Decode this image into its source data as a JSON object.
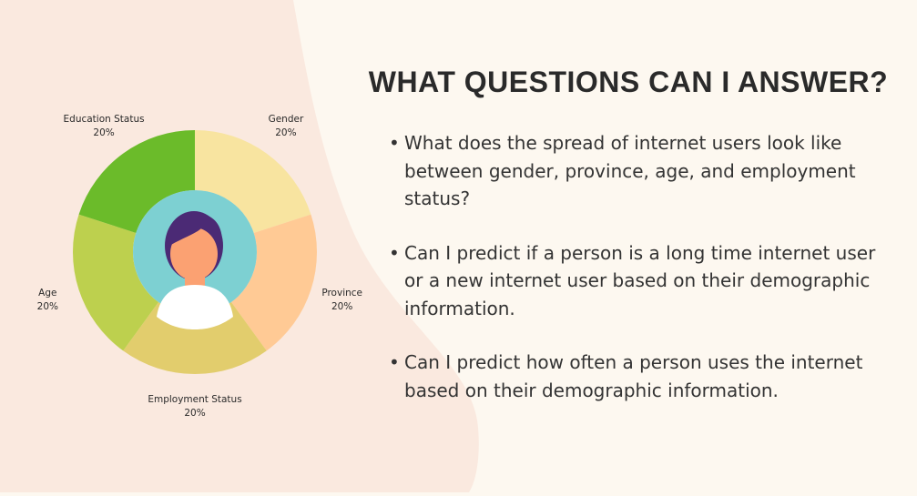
{
  "colors": {
    "background": "#fdf8f0",
    "background_shape": "#fae9df",
    "avatar_circle": "#7dd0d2",
    "avatar_hair": "#4b2a75",
    "avatar_skin": "#fba172",
    "avatar_shirt": "#ffffff",
    "heading_text": "#2a2a2a"
  },
  "heading": "WHAT QUESTIONS CAN I ANSWER?",
  "questions": [
    "What does the spread of internet users look like between gender, province, age, and employment status?",
    "Can I predict if a person is a long time internet user or a new internet user based on their demographic information.",
    "Can I predict how often a person uses the internet based on their demographic information."
  ],
  "bullet": "•",
  "chart_data": {
    "type": "pie",
    "variant": "donut",
    "center_icon": "person-avatar-icon",
    "slices": [
      {
        "name": "Gender",
        "value": 20,
        "label": "20%",
        "color": "#f8e4a0"
      },
      {
        "name": "Province",
        "value": 20,
        "label": "20%",
        "color": "#ffca95"
      },
      {
        "name": "Employment Status",
        "value": 20,
        "label": "20%",
        "color": "#e2cd6d"
      },
      {
        "name": "Age",
        "value": 20,
        "label": "20%",
        "color": "#bdd04e"
      },
      {
        "name": "Education Status",
        "value": 20,
        "label": "20%",
        "color": "#6bbb2a"
      }
    ]
  }
}
